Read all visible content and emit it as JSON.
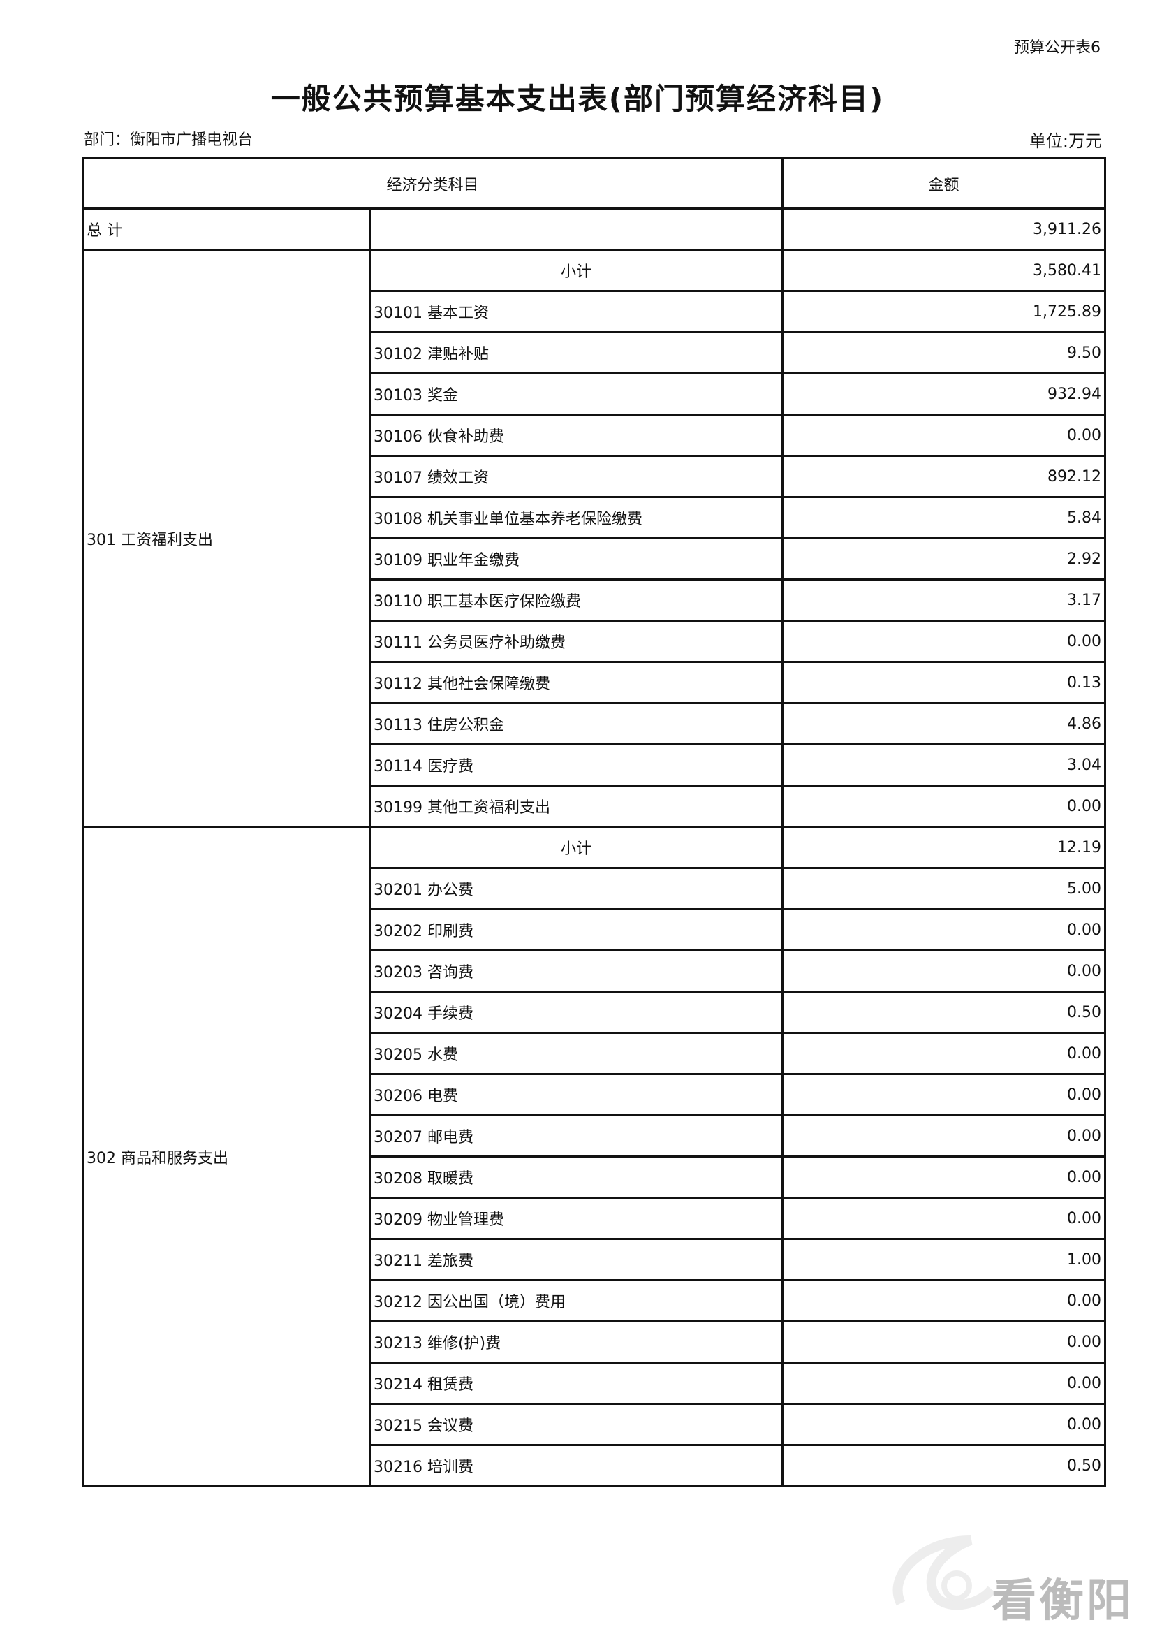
{
  "form_number": "预算公开表6",
  "title": "一般公共预算基本支出表(部门预算经济科目)",
  "department": "部门：衡阳市广播电视台",
  "unit": "单位:万元",
  "table": {
    "headers": [
      "经济分类科目",
      "金额"
    ],
    "total": {
      "label": "总 计",
      "amount": "3,911.26"
    },
    "groups": [
      {
        "label": "301 工资福利支出",
        "subtotal": {
          "label": "小计",
          "amount": "3,580.41"
        },
        "items": [
          {
            "label": "30101 基本工资",
            "amount": "1,725.89"
          },
          {
            "label": "30102 津贴补贴",
            "amount": "9.50"
          },
          {
            "label": "30103 奖金",
            "amount": "932.94"
          },
          {
            "label": "30106 伙食补助费",
            "amount": "0.00"
          },
          {
            "label": "30107 绩效工资",
            "amount": "892.12"
          },
          {
            "label": "30108 机关事业单位基本养老保险缴费",
            "amount": "5.84"
          },
          {
            "label": "30109 职业年金缴费",
            "amount": "2.92"
          },
          {
            "label": "30110 职工基本医疗保险缴费",
            "amount": "3.17"
          },
          {
            "label": "30111 公务员医疗补助缴费",
            "amount": "0.00"
          },
          {
            "label": "30112 其他社会保障缴费",
            "amount": "0.13"
          },
          {
            "label": "30113 住房公积金",
            "amount": "4.86"
          },
          {
            "label": "30114 医疗费",
            "amount": "3.04"
          },
          {
            "label": "30199 其他工资福利支出",
            "amount": "0.00"
          }
        ]
      },
      {
        "label": "302 商品和服务支出",
        "subtotal": {
          "label": "小计",
          "amount": "12.19"
        },
        "items": [
          {
            "label": "30201 办公费",
            "amount": "5.00"
          },
          {
            "label": "30202 印刷费",
            "amount": "0.00"
          },
          {
            "label": "30203 咨询费",
            "amount": "0.00"
          },
          {
            "label": "30204 手续费",
            "amount": "0.50"
          },
          {
            "label": "30205 水费",
            "amount": "0.00"
          },
          {
            "label": "30206 电费",
            "amount": "0.00"
          },
          {
            "label": "30207 邮电费",
            "amount": "0.00"
          },
          {
            "label": "30208 取暖费",
            "amount": "0.00"
          },
          {
            "label": "30209 物业管理费",
            "amount": "0.00"
          },
          {
            "label": "30211 差旅费",
            "amount": "1.00"
          },
          {
            "label": "30212 因公出国（境）费用",
            "amount": "0.00"
          },
          {
            "label": "30213 维修(护)费",
            "amount": "0.00"
          },
          {
            "label": "30214 租赁费",
            "amount": "0.00"
          },
          {
            "label": "30215 会议费",
            "amount": "0.00"
          },
          {
            "label": "30216 培训费",
            "amount": "0.50"
          }
        ]
      }
    ]
  },
  "watermark": "看衡阳"
}
